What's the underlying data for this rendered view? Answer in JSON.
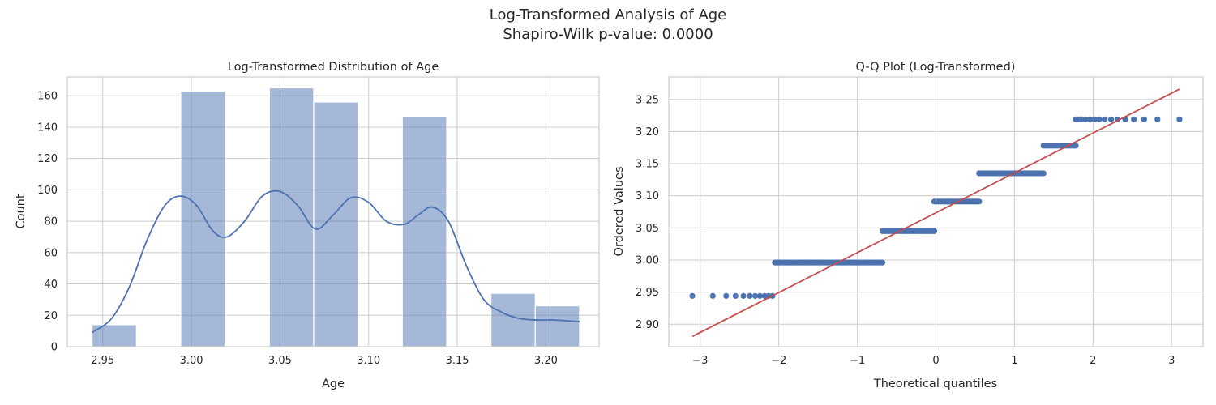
{
  "figure": {
    "title_line1": "Log-Transformed Analysis of Age",
    "title_line2": "Shapiro-Wilk p-value: 0.0000"
  },
  "colors": {
    "bar": "#4c72b0",
    "bar_opacity": 0.5,
    "kde": "#4c72b0",
    "points": "#4c72b0",
    "fit_line": "#c44e52",
    "grid": "#cccccc",
    "text": "#262626"
  },
  "chart_data": [
    {
      "type": "bar",
      "title": "Log-Transformed Distribution of Age",
      "xlabel": "Age",
      "ylabel": "Count",
      "xlim": [
        2.93,
        3.23
      ],
      "ylim": [
        0,
        172
      ],
      "grid": true,
      "xticks": [
        2.95,
        3.0,
        3.05,
        3.1,
        3.15,
        3.2
      ],
      "xtick_labels": [
        "2.95",
        "3.00",
        "3.05",
        "3.10",
        "3.15",
        "3.20"
      ],
      "yticks": [
        0,
        20,
        40,
        60,
        80,
        100,
        120,
        140,
        160
      ],
      "ytick_labels": [
        "0",
        "20",
        "40",
        "60",
        "80",
        "100",
        "120",
        "140",
        "160"
      ],
      "bins": [
        {
          "x0": 2.944,
          "x1": 2.969,
          "count": 14
        },
        {
          "x0": 2.969,
          "x1": 2.994,
          "count": 0
        },
        {
          "x0": 2.994,
          "x1": 3.019,
          "count": 163
        },
        {
          "x0": 3.019,
          "x1": 3.044,
          "count": 0
        },
        {
          "x0": 3.044,
          "x1": 3.069,
          "count": 165
        },
        {
          "x0": 3.069,
          "x1": 3.094,
          "count": 156
        },
        {
          "x0": 3.094,
          "x1": 3.119,
          "count": 0
        },
        {
          "x0": 3.119,
          "x1": 3.144,
          "count": 147
        },
        {
          "x0": 3.144,
          "x1": 3.169,
          "count": 0
        },
        {
          "x0": 3.169,
          "x1": 3.194,
          "count": 34
        },
        {
          "x0": 3.194,
          "x1": 3.219,
          "count": 26
        }
      ],
      "kde": {
        "x": [
          2.944,
          2.955,
          2.965,
          2.975,
          2.985,
          2.994,
          3.003,
          3.012,
          3.02,
          3.03,
          3.04,
          3.05,
          3.06,
          3.07,
          3.08,
          3.09,
          3.1,
          3.11,
          3.12,
          3.128,
          3.136,
          3.145,
          3.155,
          3.165,
          3.175,
          3.185,
          3.195,
          3.205,
          3.219
        ],
        "y": [
          9,
          18,
          38,
          68,
          90,
          96,
          90,
          74,
          70,
          80,
          96,
          99,
          90,
          75,
          84,
          95,
          92,
          80,
          78,
          84,
          89,
          80,
          52,
          30,
          22,
          18,
          17,
          17,
          16
        ]
      }
    },
    {
      "type": "scatter",
      "title": "Q-Q Plot (Log-Transformed)",
      "xlabel": "Theoretical quantiles",
      "ylabel": "Ordered Values",
      "xlim": [
        -3.4,
        3.4
      ],
      "ylim": [
        2.865,
        3.285
      ],
      "grid": true,
      "xticks": [
        -3,
        -2,
        -1,
        0,
        1,
        2,
        3
      ],
      "xtick_labels": [
        "−3",
        "−2",
        "−1",
        "0",
        "1",
        "2",
        "3"
      ],
      "yticks": [
        2.9,
        2.95,
        3.0,
        3.05,
        3.1,
        3.15,
        3.2,
        3.25
      ],
      "ytick_labels": [
        "2.90",
        "2.95",
        "3.00",
        "3.05",
        "3.10",
        "3.15",
        "3.20",
        "3.25"
      ],
      "fit_line": {
        "x": [
          -3.1,
          3.1
        ],
        "y": [
          2.881,
          3.266
        ]
      },
      "sparse_points": [
        {
          "x": -3.1,
          "y": 2.944
        },
        {
          "x": -2.84,
          "y": 2.944
        },
        {
          "x": -2.67,
          "y": 2.944
        },
        {
          "x": -2.55,
          "y": 2.944
        },
        {
          "x": -2.45,
          "y": 2.944
        },
        {
          "x": -2.37,
          "y": 2.944
        },
        {
          "x": -2.3,
          "y": 2.944
        },
        {
          "x": -2.24,
          "y": 2.944
        },
        {
          "x": -2.18,
          "y": 2.944
        },
        {
          "x": -2.13,
          "y": 2.944
        },
        {
          "x": -2.08,
          "y": 2.944
        },
        {
          "x": 1.85,
          "y": 3.219
        },
        {
          "x": 1.9,
          "y": 3.219
        },
        {
          "x": 1.96,
          "y": 3.219
        },
        {
          "x": 2.02,
          "y": 3.219
        },
        {
          "x": 2.08,
          "y": 3.219
        },
        {
          "x": 2.15,
          "y": 3.219
        },
        {
          "x": 2.23,
          "y": 3.219
        },
        {
          "x": 2.31,
          "y": 3.219
        },
        {
          "x": 2.41,
          "y": 3.219
        },
        {
          "x": 2.52,
          "y": 3.219
        },
        {
          "x": 2.65,
          "y": 3.219
        },
        {
          "x": 2.82,
          "y": 3.219
        },
        {
          "x": 3.1,
          "y": 3.219
        }
      ],
      "dense_steps": [
        {
          "x0": -2.05,
          "x1": -0.68,
          "y": 2.996
        },
        {
          "x0": -0.68,
          "x1": -0.02,
          "y": 3.045
        },
        {
          "x0": -0.02,
          "x1": 0.55,
          "y": 3.091
        },
        {
          "x0": 0.55,
          "x1": 1.37,
          "y": 3.135
        },
        {
          "x0": 1.37,
          "x1": 1.78,
          "y": 3.178
        },
        {
          "x0": 1.78,
          "x1": 1.85,
          "y": 3.219
        }
      ]
    }
  ]
}
